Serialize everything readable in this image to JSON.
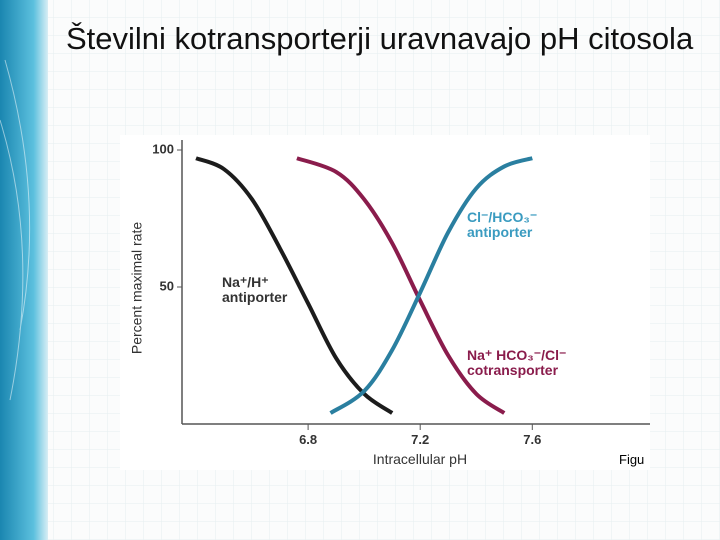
{
  "title": "Številni kotransporterji uravnavajo pH citosola",
  "chart_data": {
    "type": "line",
    "y_label": "Percent maximal rate",
    "x_label": "Intracellular pH",
    "figure_label": "Figu",
    "xlim": [
      6.35,
      8.02
    ],
    "ylim": [
      0,
      100
    ],
    "xticks": [
      6.8,
      7.2,
      7.6
    ],
    "yticks": [
      50,
      100
    ],
    "series": [
      {
        "name": "Na⁺/H⁺\nantiporter",
        "color": "#1c1c1c",
        "label_color": "#333333",
        "x": [
          6.4,
          6.5,
          6.6,
          6.7,
          6.8,
          6.9,
          7.0,
          7.1
        ],
        "values": [
          97,
          93,
          82,
          64,
          44,
          24,
          11,
          4
        ]
      },
      {
        "name": "Na⁺ HCO₃⁻/Cl⁻\ncotransporter",
        "color": "#8a1c4c",
        "label_color": "#8a1c4c",
        "x": [
          6.76,
          6.9,
          7.0,
          7.1,
          7.2,
          7.3,
          7.4,
          7.5
        ],
        "values": [
          97,
          92,
          82,
          66,
          45,
          25,
          11,
          4
        ]
      },
      {
        "name": "Cl⁻/HCO₃⁻\nantiporter",
        "color": "#2a7fa0",
        "label_color": "#3a9bc0",
        "x": [
          6.88,
          7.0,
          7.1,
          7.2,
          7.3,
          7.4,
          7.5,
          7.6
        ],
        "values": [
          4,
          12,
          27,
          48,
          70,
          86,
          94,
          97
        ]
      }
    ]
  }
}
